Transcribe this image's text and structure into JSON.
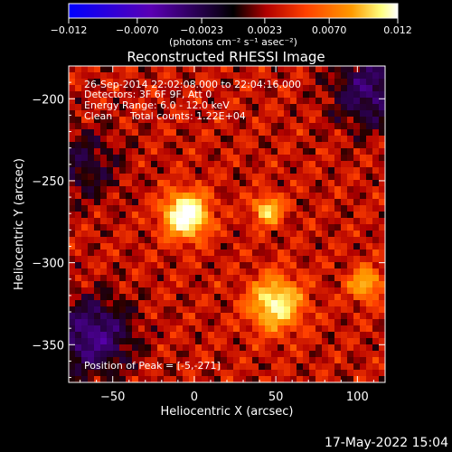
{
  "chart_data": {
    "type": "heatmap",
    "title": "Reconstructed RHESSI Image",
    "xlabel": "Heliocentric X (arcsec)",
    "ylabel": "Heliocentric Y (arcsec)",
    "xlim": [
      -77,
      117
    ],
    "ylim": [
      -373,
      -180
    ],
    "x_ticks": [
      -50,
      0,
      50,
      100
    ],
    "y_ticks": [
      -200,
      -250,
      -300,
      -350
    ],
    "x_tick_labels": [
      "−50",
      "0",
      "50",
      "100"
    ],
    "y_tick_labels": [
      "−200",
      "−250",
      "−300",
      "−350"
    ],
    "colorbar": {
      "range": [
        -0.012,
        0.012
      ],
      "ticks": [
        -0.012,
        -0.007,
        -0.0023,
        0.0023,
        0.007,
        0.012
      ],
      "tick_labels": [
        "−0.012",
        "−0.0070",
        "−0.0023",
        "0.0023",
        "0.0070",
        "0.012"
      ],
      "units": "(photons cm⁻² s⁻¹ asec⁻²)",
      "colormap": [
        "#0000ff",
        "#5a00b4",
        "#000000",
        "#b00000",
        "#ff4000",
        "#ff9a00",
        "#ffff80",
        "#ffffff"
      ]
    },
    "sources": [
      {
        "x": -5,
        "y": -271,
        "peak": 0.012,
        "sigma": 9
      },
      {
        "x": 50,
        "y": -325,
        "peak": 0.0085,
        "sigma": 11
      },
      {
        "x": 45,
        "y": -268,
        "peak": 0.0072,
        "sigma": 6
      },
      {
        "x": 105,
        "y": -313,
        "peak": 0.006,
        "sigma": 7
      }
    ],
    "negative_regions": [
      {
        "x": -62,
        "y": -345,
        "value": -0.006
      },
      {
        "x": 108,
        "y": -195,
        "value": -0.005
      },
      {
        "x": -68,
        "y": -240,
        "value": -0.003
      }
    ],
    "annotation": {
      "line1": "26-Sep-2014 22:02:08.000 to 22:04:16.000",
      "line2": "Detectors: 3F 6F 9F, Att 0",
      "line3": "Energy Range: 6.0 - 12.0 keV",
      "line4a": "Clean",
      "line4b": "Total counts: 1.22E+04",
      "peak": "Position of Peak = [-5,-271]"
    },
    "footer_date": "17-May-2022 15:04"
  }
}
